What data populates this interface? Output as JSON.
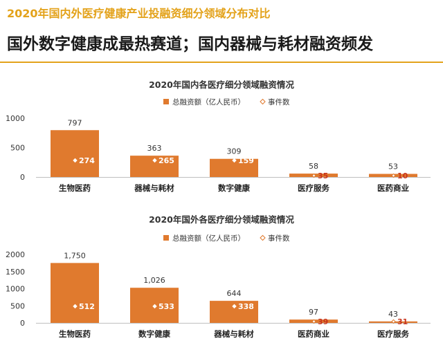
{
  "header": {
    "title": "2020年国内外医疗健康产业投融资细分领域分布对比",
    "headline": "国外数字健康成最热赛道；国内器械与耗材融资频发"
  },
  "colors": {
    "bar": "#e07a2e",
    "accent": "#e3a21a",
    "event_label": "#c8341c"
  },
  "chart_data": [
    {
      "type": "bar",
      "title": "2020年国内各医疗细分领域融资情况",
      "legend": {
        "position": "top-center",
        "bar_label": "总融资额（亿人民币）",
        "marker_label": "事件数"
      },
      "categories": [
        "生物医药",
        "器械与耗材",
        "数字健康",
        "医疗服务",
        "医药商业"
      ],
      "series": [
        {
          "name": "总融资额（亿人民币）",
          "values": [
            797,
            363,
            309,
            58,
            53
          ]
        },
        {
          "name": "事件数",
          "values": [
            274,
            265,
            159,
            35,
            10
          ]
        }
      ],
      "value_labels": [
        "797",
        "363",
        "309",
        "58",
        "53"
      ],
      "event_labels": [
        "274",
        "265",
        "159",
        "35",
        "10"
      ],
      "ylim": [
        0,
        1000
      ],
      "yticks": [
        0,
        500,
        1000
      ],
      "ytick_labels": [
        "0",
        "500",
        "1000"
      ],
      "grid": false
    },
    {
      "type": "bar",
      "title": "2020年国外各医疗细分领域融资情况",
      "legend": {
        "position": "top-center",
        "bar_label": "总融资额（亿人民币）",
        "marker_label": "事件数"
      },
      "categories": [
        "生物医药",
        "数字健康",
        "器械与耗材",
        "医药商业",
        "医疗服务"
      ],
      "series": [
        {
          "name": "总融资额（亿人民币）",
          "values": [
            1750,
            1026,
            644,
            97,
            43
          ]
        },
        {
          "name": "事件数",
          "values": [
            512,
            533,
            338,
            39,
            31
          ]
        }
      ],
      "value_labels": [
        "1,750",
        "1,026",
        "644",
        "97",
        "43"
      ],
      "event_labels": [
        "512",
        "533",
        "338",
        "39",
        "31"
      ],
      "ylim": [
        0,
        2000
      ],
      "yticks": [
        0,
        500,
        1000,
        1500,
        2000
      ],
      "ytick_labels": [
        "0",
        "500",
        "1000",
        "1500",
        "2000"
      ],
      "grid": false
    }
  ]
}
